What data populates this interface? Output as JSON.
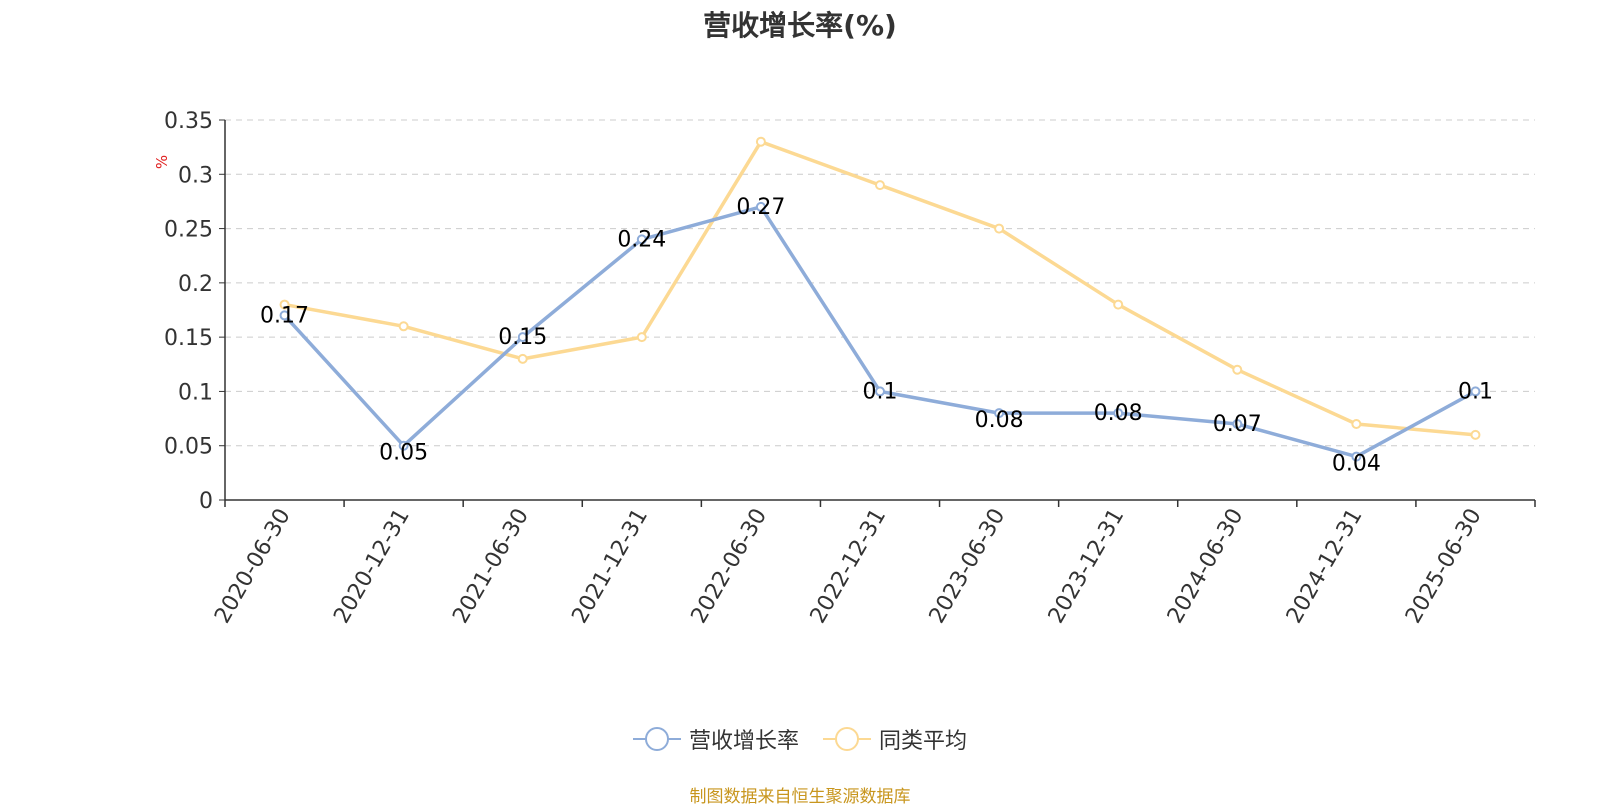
{
  "colors": {
    "series1": "#8eacd9",
    "series2": "#fcd993",
    "footer": "#c8961e",
    "unit": "#e02020",
    "grid": "#cccccc",
    "axis": "#333333"
  },
  "chart_data": {
    "type": "line",
    "title": "营收增长率(%)",
    "ylabel": "%",
    "ylim": [
      0,
      0.35
    ],
    "yticks": [
      "0",
      "0.05",
      "0.1",
      "0.15",
      "0.2",
      "0.25",
      "0.3",
      "0.35"
    ],
    "grid": true,
    "legend_position": "bottom",
    "categories": [
      "2020-06-30",
      "2020-12-31",
      "2021-06-30",
      "2021-12-31",
      "2022-06-30",
      "2022-12-31",
      "2023-06-30",
      "2023-12-31",
      "2024-06-30",
      "2024-12-31",
      "2025-06-30"
    ],
    "series": [
      {
        "name": "营收增长率",
        "values": [
          0.17,
          0.05,
          0.15,
          0.24,
          0.27,
          0.1,
          0.08,
          0.08,
          0.07,
          0.04,
          0.1
        ],
        "labels": [
          "0.17",
          "0.05",
          "0.15",
          "0.24",
          "0.27",
          "0.1",
          "0.08",
          "0.08",
          "0.07",
          "0.04",
          "0.1"
        ]
      },
      {
        "name": "同类平均",
        "values": [
          0.18,
          0.16,
          0.13,
          0.15,
          0.33,
          0.29,
          0.25,
          0.18,
          0.12,
          0.07,
          0.06
        ]
      }
    ]
  },
  "footer": "制图数据来自恒生聚源数据库"
}
